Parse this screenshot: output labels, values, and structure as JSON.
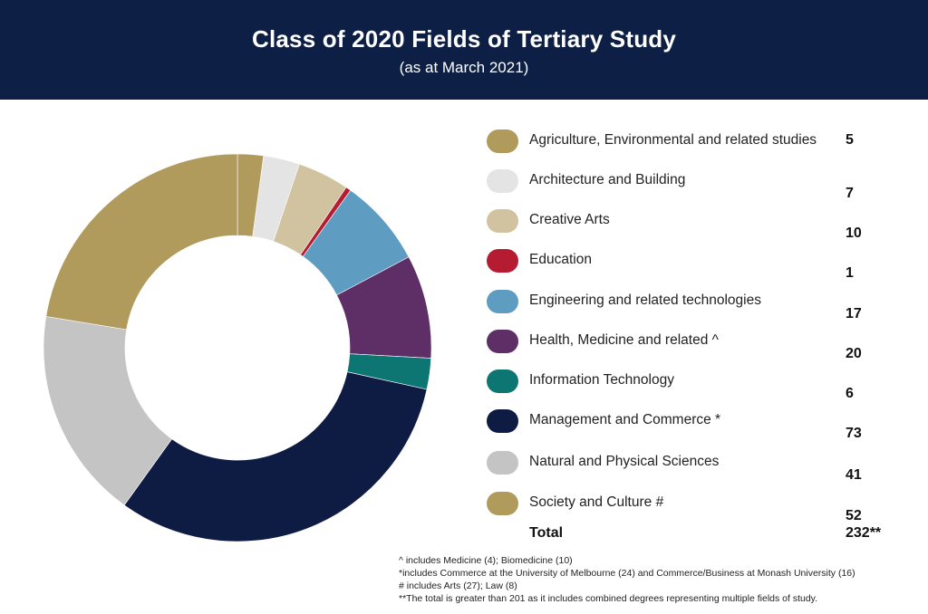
{
  "header": {
    "title": "Class of 2020 Fields of Tertiary Study",
    "subtitle": "(as at March 2021)"
  },
  "colors": {
    "header_bg": "#0e1f45",
    "header_text": "#ffffff"
  },
  "chart_data": {
    "type": "pie",
    "donut": true,
    "categories": [
      "Agriculture, Environmental and related studies",
      "Architecture and Building",
      "Creative Arts",
      "Education",
      "Engineering and related technologies",
      "Health, Medicine and related ^",
      "Information Technology",
      "Management and Commerce *",
      "Natural and Physical Sciences",
      "Society and Culture #"
    ],
    "values": [
      5,
      7,
      10,
      1,
      17,
      20,
      6,
      73,
      41,
      52
    ],
    "value_labels": [
      "5",
      "7",
      "10",
      "1",
      "17",
      "20",
      "6",
      "73",
      "41",
      "52"
    ],
    "colors": [
      "#b09a5c",
      "#e4e4e4",
      "#d1c3a0",
      "#b51b31",
      "#5f9cc2",
      "#5e2f66",
      "#0d7673",
      "#0e1c44",
      "#c4c4c4",
      "#b09a5c"
    ],
    "total_label": "Total",
    "total_value": "232**",
    "legend_position": "right"
  },
  "footnotes": [
    "^ includes Medicine (4); Biomedicine (10)",
    "*includes Commerce at the University of Melbourne (24) and Commerce/Business at Monash University (16)",
    "# includes Arts (27); Law (8)",
    "**The total is greater than 201 as it includes combined degrees representing multiple fields of study."
  ]
}
